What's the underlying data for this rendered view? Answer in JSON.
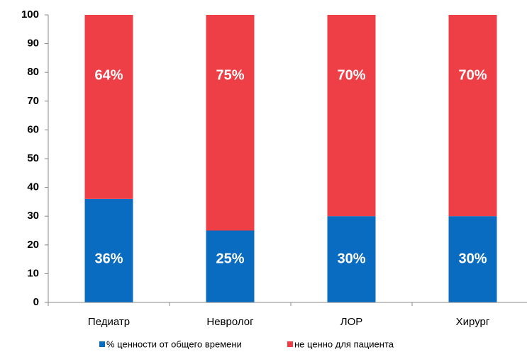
{
  "chart_data": {
    "type": "stacked_bar",
    "categories": [
      "Педиатр",
      "Невролог",
      "ЛОР",
      "Хирург"
    ],
    "series": [
      {
        "name": "% ценности от общего времени",
        "color": "#0a6cc0",
        "values": [
          36,
          25,
          30,
          30
        ],
        "value_labels": [
          "36%",
          "25%",
          "30%",
          "30%"
        ]
      },
      {
        "name": "не ценно для пациента",
        "color": "#ee3e46",
        "values": [
          64,
          75,
          70,
          70
        ],
        "value_labels": [
          "64%",
          "75%",
          "70%",
          "70%"
        ]
      }
    ],
    "ylim": [
      0,
      100
    ],
    "yticks": [
      0,
      10,
      20,
      30,
      40,
      50,
      60,
      70,
      80,
      90,
      100
    ],
    "legend": "bottom"
  }
}
